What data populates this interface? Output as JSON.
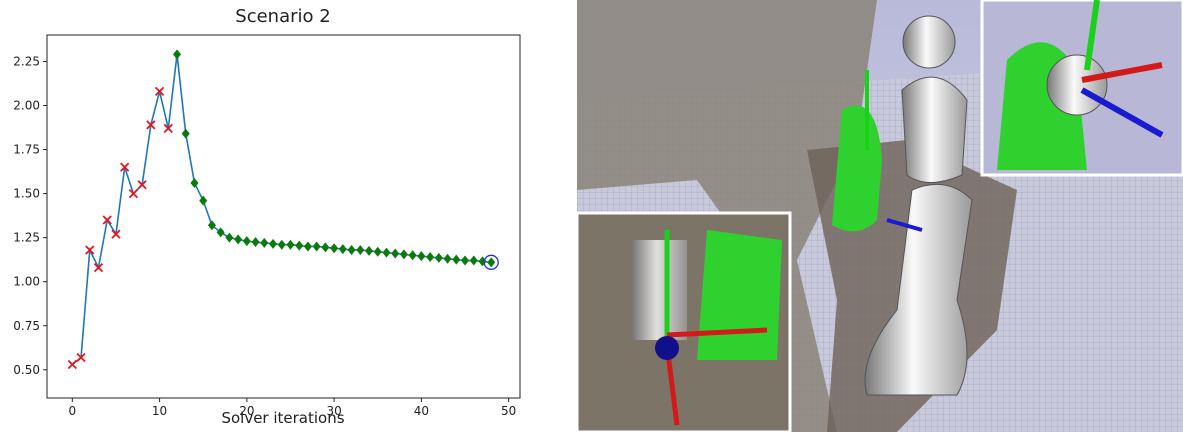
{
  "chart_data": {
    "type": "line",
    "title": "Scenario 2",
    "x_label": "Solver iterations",
    "x": [
      0,
      1,
      2,
      3,
      4,
      5,
      6,
      7,
      8,
      9,
      10,
      11,
      12,
      13,
      14,
      15,
      16,
      17,
      18,
      19,
      20,
      21,
      22,
      23,
      24,
      25,
      26,
      27,
      28,
      29,
      30,
      31,
      32,
      33,
      34,
      35,
      36,
      37,
      38,
      39,
      40,
      41,
      42,
      43,
      44,
      45,
      46,
      47,
      48
    ],
    "series": [
      {
        "color": "#1f77b4",
        "values": [
          0.53,
          0.57,
          1.18,
          1.08,
          1.35,
          1.27,
          1.65,
          1.5,
          1.55,
          1.89,
          2.08,
          1.87,
          2.29,
          1.84,
          1.56,
          1.46,
          1.32,
          1.28,
          1.25,
          1.24,
          1.23,
          1.225,
          1.22,
          1.215,
          1.21,
          1.21,
          1.205,
          1.2,
          1.2,
          1.195,
          1.19,
          1.185,
          1.18,
          1.18,
          1.175,
          1.17,
          1.165,
          1.16,
          1.155,
          1.15,
          1.145,
          1.14,
          1.135,
          1.13,
          1.125,
          1.12,
          1.12,
          1.115,
          1.11
        ],
        "markers": [
          "x",
          "x",
          "x",
          "x",
          "x",
          "x",
          "x",
          "x",
          "x",
          "x",
          "x",
          "x",
          "diamond",
          "diamond",
          "diamond",
          "diamond",
          "diamond",
          "diamond",
          "diamond",
          "diamond",
          "diamond",
          "diamond",
          "diamond",
          "diamond",
          "diamond",
          "diamond",
          "diamond",
          "diamond",
          "diamond",
          "diamond",
          "diamond",
          "diamond",
          "diamond",
          "diamond",
          "diamond",
          "diamond",
          "diamond",
          "diamond",
          "diamond",
          "diamond",
          "diamond",
          "diamond",
          "diamond",
          "diamond",
          "diamond",
          "diamond",
          "diamond",
          "diamond",
          "diamond"
        ],
        "marker_colors": [
          "#e8141c",
          "#e8141c",
          "#e8141c",
          "#e8141c",
          "#e8141c",
          "#e8141c",
          "#e8141c",
          "#e8141c",
          "#e8141c",
          "#e8141c",
          "#e8141c",
          "#e8141c",
          "#0a7a0a",
          "#0a7a0a",
          "#0a7a0a",
          "#0a7a0a",
          "#0a7a0a",
          "#0a7a0a",
          "#0a7a0a",
          "#0a7a0a",
          "#0a7a0a",
          "#0a7a0a",
          "#0a7a0a",
          "#0a7a0a",
          "#0a7a0a",
          "#0a7a0a",
          "#0a7a0a",
          "#0a7a0a",
          "#0a7a0a",
          "#0a7a0a",
          "#0a7a0a",
          "#0a7a0a",
          "#0a7a0a",
          "#0a7a0a",
          "#0a7a0a",
          "#0a7a0a",
          "#0a7a0a",
          "#0a7a0a",
          "#0a7a0a",
          "#0a7a0a",
          "#0a7a0a",
          "#0a7a0a",
          "#0a7a0a",
          "#0a7a0a",
          "#0a7a0a",
          "#0a7a0a",
          "#0a7a0a",
          "#0a7a0a",
          "#0a7a0a"
        ],
        "highlight": "last",
        "highlight_color": "#2233dd"
      }
    ],
    "xlim": [
      -2.9,
      51.3
    ],
    "xticks": [
      0,
      10,
      20,
      30,
      40,
      50
    ],
    "ylim": [
      0.34,
      2.4
    ],
    "yticks": [
      {
        "value": 0.5,
        "label": "0.50"
      },
      0.75,
      {
        "value": 1,
        "label": "1.00"
      },
      1.25,
      {
        "value": 1.5,
        "label": "1.50"
      },
      1.75,
      {
        "value": 2,
        "label": "2.00"
      },
      2.25
    ],
    "grid": false
  }
}
